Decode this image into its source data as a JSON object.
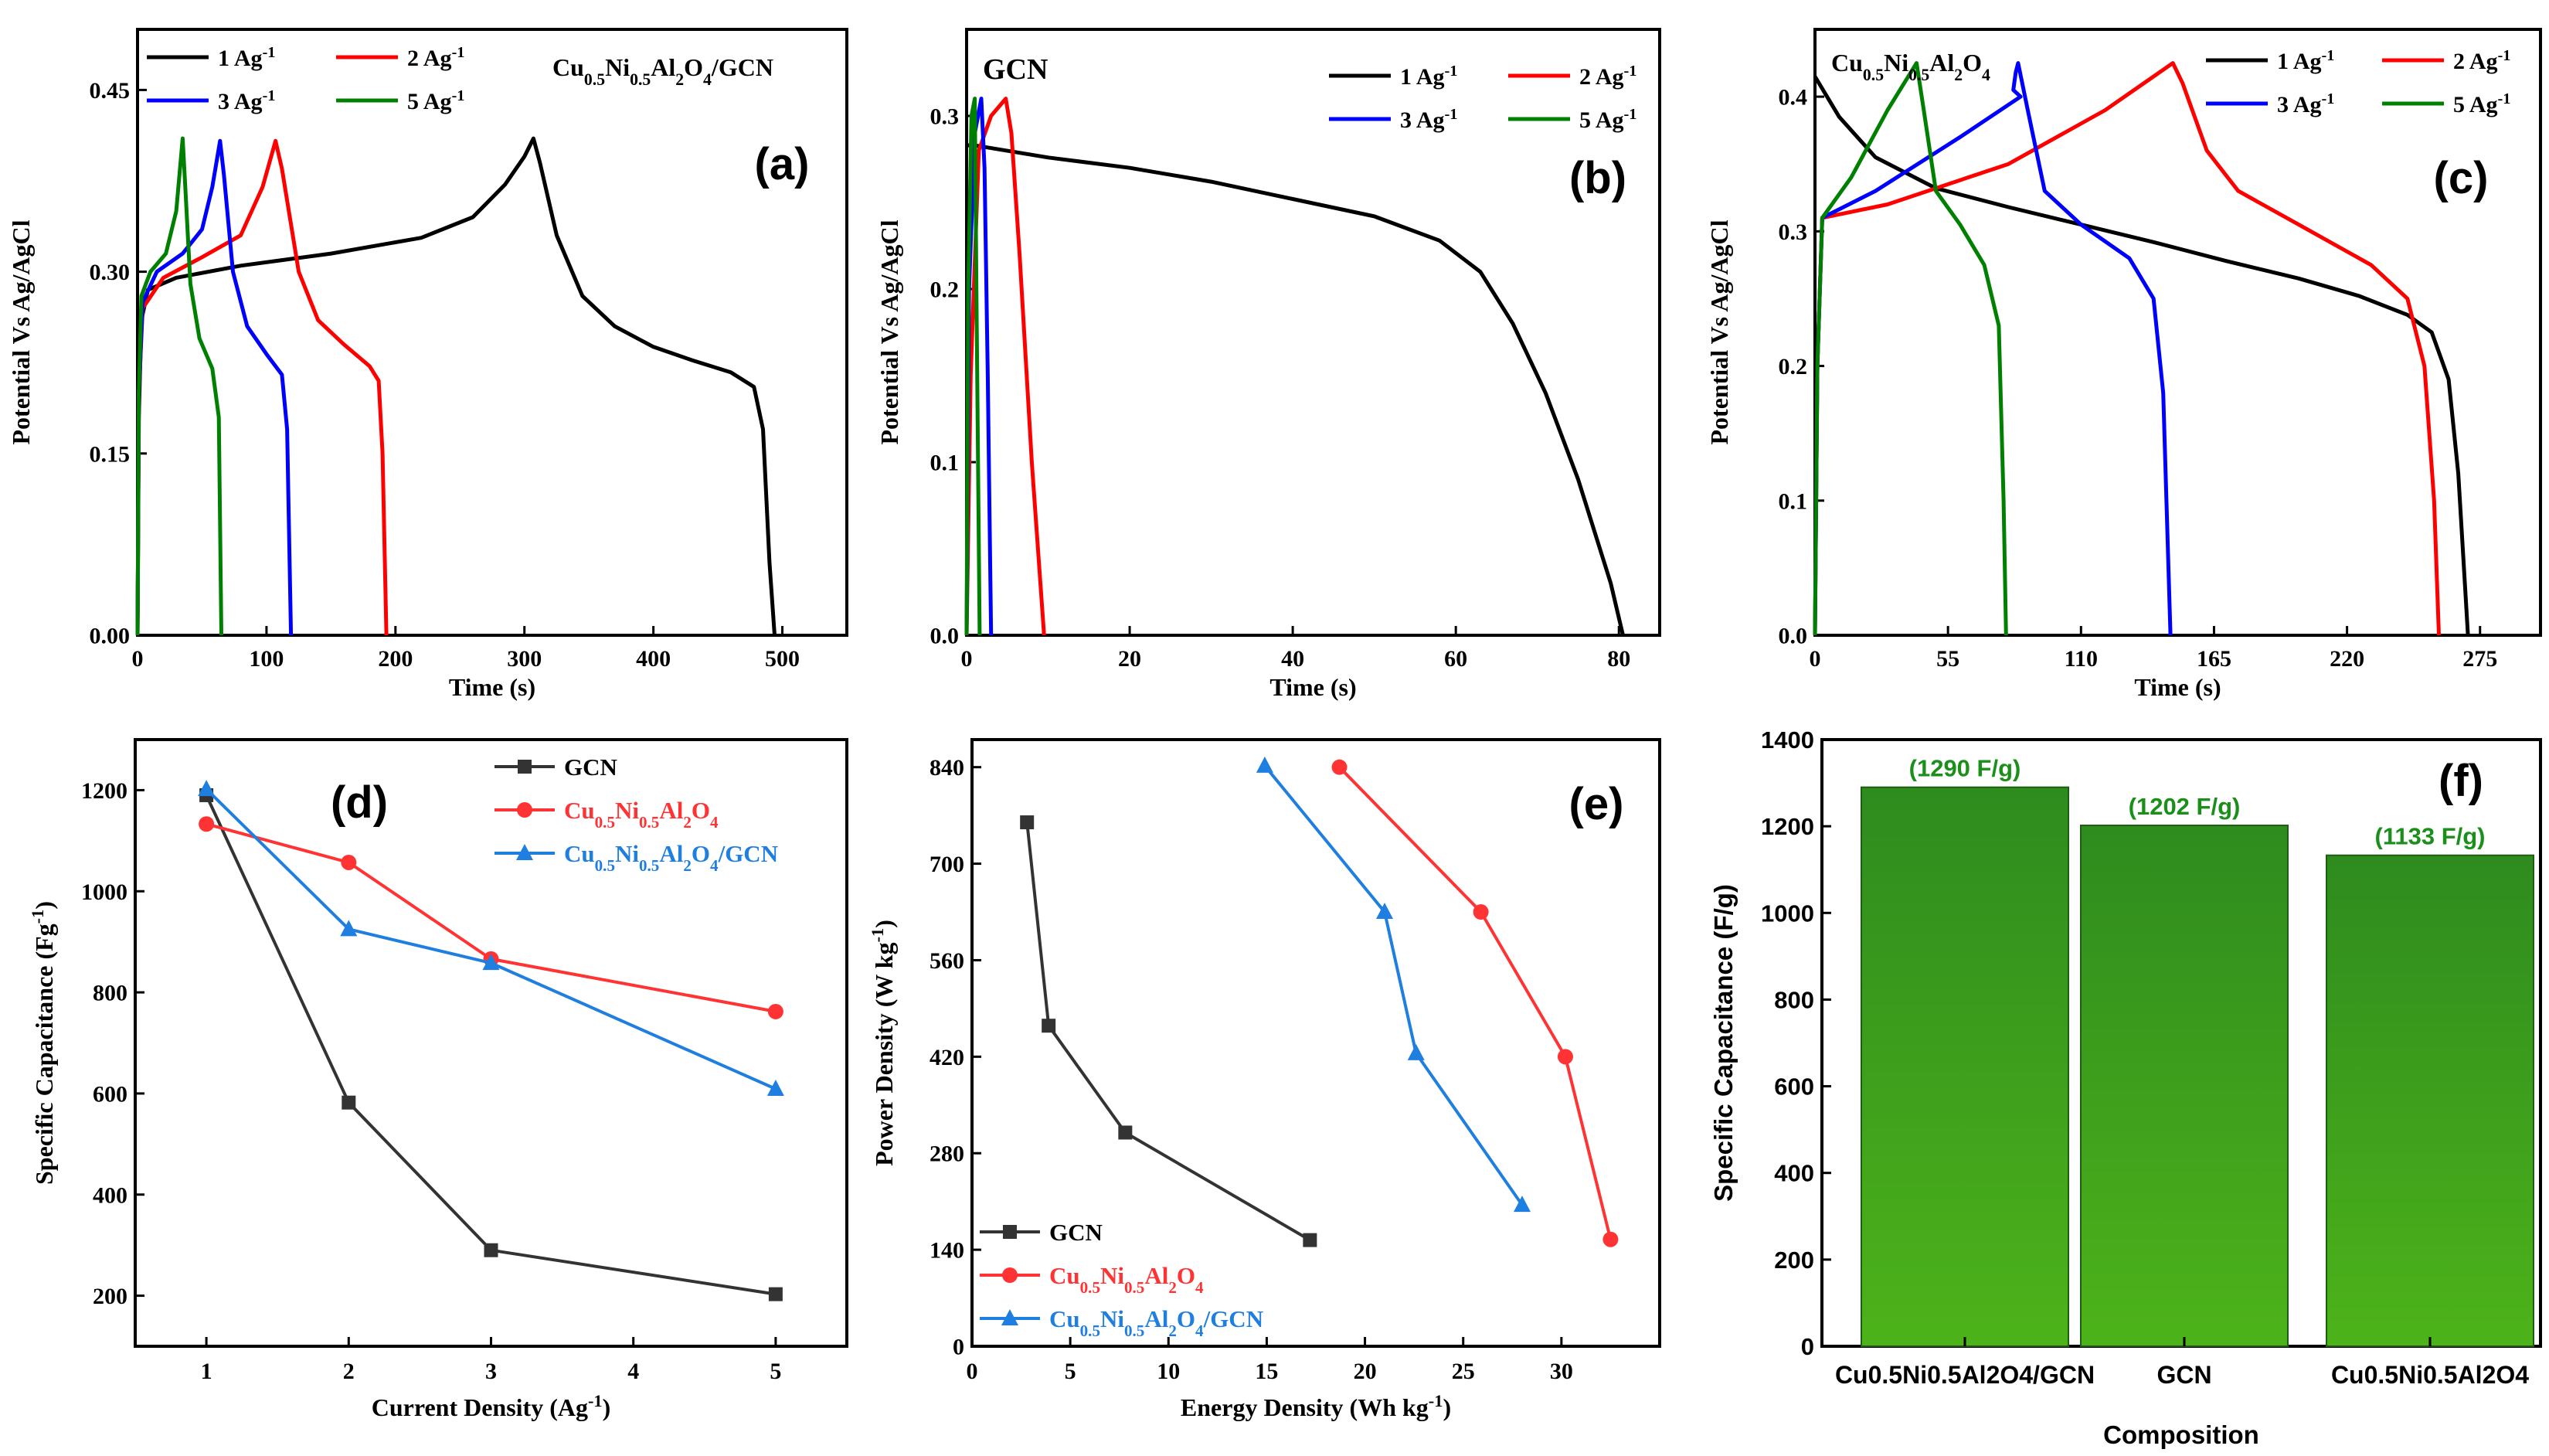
{
  "figure": {
    "description_panels": [
      "a",
      "b",
      "c",
      "d",
      "e",
      "f"
    ]
  },
  "chart_data": [
    {
      "id": "a",
      "type": "line",
      "panel_label": "(a)",
      "title": "Cu0.5Ni0.5Al2O4/GCN",
      "title_parts": [
        [
          "Cu",
          "0.5",
          "Ni",
          "0.5",
          "Al",
          "2",
          "O",
          "4",
          "/GCN"
        ]
      ],
      "xlabel": "Time (s)",
      "ylabel": "Potential Vs Ag/AgCl",
      "xlim": [
        0,
        550
      ],
      "ylim": [
        0,
        0.5
      ],
      "xticks": [
        0,
        100,
        200,
        300,
        400,
        500
      ],
      "yticks": [
        0.0,
        0.15,
        0.3,
        0.45
      ],
      "ytick_labels": [
        "0.00",
        "0.15",
        "0.30",
        "0.45"
      ],
      "legend": [
        "1 Ag-1",
        "2 Ag-1",
        "3 Ag-1",
        "5 Ag-1"
      ],
      "series": [
        {
          "name": "1 Ag-1",
          "color": "#000000",
          "points": [
            [
              0,
              0
            ],
            [
              1,
              0.18
            ],
            [
              3,
              0.26
            ],
            [
              8,
              0.285
            ],
            [
              30,
              0.295
            ],
            [
              80,
              0.305
            ],
            [
              150,
              0.315
            ],
            [
              220,
              0.328
            ],
            [
              260,
              0.345
            ],
            [
              285,
              0.372
            ],
            [
              300,
              0.395
            ],
            [
              307,
              0.41
            ],
            [
              312,
              0.39
            ],
            [
              325,
              0.33
            ],
            [
              345,
              0.28
            ],
            [
              370,
              0.255
            ],
            [
              400,
              0.238
            ],
            [
              430,
              0.227
            ],
            [
              460,
              0.217
            ],
            [
              478,
              0.205
            ],
            [
              485,
              0.17
            ],
            [
              490,
              0.06
            ],
            [
              494,
              0
            ]
          ]
        },
        {
          "name": "2 Ag-1",
          "color": "#ff0000",
          "points": [
            [
              0,
              0
            ],
            [
              1,
              0.2
            ],
            [
              4,
              0.27
            ],
            [
              20,
              0.295
            ],
            [
              50,
              0.312
            ],
            [
              80,
              0.33
            ],
            [
              97,
              0.37
            ],
            [
              107,
              0.408
            ],
            [
              112,
              0.385
            ],
            [
              125,
              0.3
            ],
            [
              140,
              0.26
            ],
            [
              160,
              0.24
            ],
            [
              180,
              0.222
            ],
            [
              187,
              0.21
            ],
            [
              190,
              0.15
            ],
            [
              193,
              0
            ]
          ]
        },
        {
          "name": "3 Ag-1",
          "color": "#0000ff",
          "points": [
            [
              0,
              0
            ],
            [
              1,
              0.2
            ],
            [
              4,
              0.275
            ],
            [
              15,
              0.3
            ],
            [
              35,
              0.315
            ],
            [
              50,
              0.335
            ],
            [
              58,
              0.37
            ],
            [
              64,
              0.408
            ],
            [
              67,
              0.38
            ],
            [
              74,
              0.3
            ],
            [
              85,
              0.255
            ],
            [
              100,
              0.232
            ],
            [
              112,
              0.215
            ],
            [
              116,
              0.17
            ],
            [
              119,
              0
            ]
          ]
        },
        {
          "name": "5 Ag-1",
          "color": "#008000",
          "points": [
            [
              0,
              0
            ],
            [
              1,
              0.2
            ],
            [
              3,
              0.28
            ],
            [
              10,
              0.3
            ],
            [
              22,
              0.315
            ],
            [
              30,
              0.35
            ],
            [
              35,
              0.41
            ],
            [
              37,
              0.37
            ],
            [
              41,
              0.29
            ],
            [
              48,
              0.245
            ],
            [
              58,
              0.22
            ],
            [
              63,
              0.18
            ],
            [
              65,
              0
            ]
          ]
        }
      ]
    },
    {
      "id": "b",
      "type": "line",
      "panel_label": "(b)",
      "title": "GCN",
      "xlabel": "Time (s)",
      "ylabel": "Potential Vs Ag/AgCl",
      "xlim": [
        0,
        85
      ],
      "ylim": [
        0,
        0.35
      ],
      "xticks": [
        0,
        20,
        40,
        60,
        80
      ],
      "yticks": [
        0.0,
        0.1,
        0.2,
        0.3
      ],
      "ytick_labels": [
        "0.0",
        "0.1",
        "0.2",
        "0.3"
      ],
      "legend": [
        "1 Ag-1",
        "2 Ag-1",
        "3 Ag-1",
        "5 Ag-1"
      ],
      "series": [
        {
          "name": "1 Ag-1",
          "color": "#000000",
          "points": [
            [
              0,
              0.283
            ],
            [
              1,
              0.283
            ],
            [
              10,
              0.276
            ],
            [
              20,
              0.27
            ],
            [
              30,
              0.262
            ],
            [
              40,
              0.252
            ],
            [
              50,
              0.242
            ],
            [
              58,
              0.228
            ],
            [
              63,
              0.21
            ],
            [
              67,
              0.18
            ],
            [
              71,
              0.14
            ],
            [
              75,
              0.09
            ],
            [
              79,
              0.03
            ],
            [
              80.5,
              0
            ]
          ]
        },
        {
          "name": "2 Ag-1",
          "color": "#ff0000",
          "points": [
            [
              0,
              0
            ],
            [
              0.5,
              0.15
            ],
            [
              1.5,
              0.28
            ],
            [
              3,
              0.3
            ],
            [
              4.8,
              0.31
            ],
            [
              5.5,
              0.29
            ],
            [
              6.5,
              0.22
            ],
            [
              8,
              0.1
            ],
            [
              9.5,
              0
            ]
          ]
        },
        {
          "name": "3 Ag-1",
          "color": "#0000ff",
          "points": [
            [
              0,
              0
            ],
            [
              0.3,
              0.2
            ],
            [
              1,
              0.29
            ],
            [
              1.8,
              0.31
            ],
            [
              2.2,
              0.27
            ],
            [
              2.6,
              0.15
            ],
            [
              3,
              0
            ]
          ]
        },
        {
          "name": "5 Ag-1",
          "color": "#008000",
          "points": [
            [
              0,
              0
            ],
            [
              0.2,
              0.2
            ],
            [
              0.6,
              0.3
            ],
            [
              1,
              0.31
            ],
            [
              1.2,
              0.2
            ],
            [
              1.4,
              0.1
            ],
            [
              1.6,
              0
            ]
          ]
        }
      ]
    },
    {
      "id": "c",
      "type": "line",
      "panel_label": "(c)",
      "title": "Cu0.5Ni0.5Al2O4",
      "title_parts": [
        [
          "Cu",
          "0.5",
          "Ni",
          "0.5",
          "Al",
          "2",
          "O",
          "4",
          ""
        ]
      ],
      "xlabel": "Time (s)",
      "ylabel": "Potential Vs Ag/AgCl",
      "xlim": [
        0,
        300
      ],
      "ylim": [
        0,
        0.45
      ],
      "xticks": [
        0,
        55,
        110,
        165,
        220,
        275
      ],
      "yticks": [
        0.0,
        0.1,
        0.2,
        0.3,
        0.4
      ],
      "ytick_labels": [
        "0.0",
        "0.1",
        "0.2",
        "0.3",
        "0.4"
      ],
      "legend": [
        "1 Ag-1",
        "2 Ag-1",
        "3 Ag-1",
        "5 Ag-1"
      ],
      "series": [
        {
          "name": "1 Ag-1",
          "color": "#000000",
          "points": [
            [
              0,
              0.415
            ],
            [
              10,
              0.385
            ],
            [
              25,
              0.355
            ],
            [
              50,
              0.332
            ],
            [
              80,
              0.318
            ],
            [
              110,
              0.305
            ],
            [
              140,
              0.292
            ],
            [
              170,
              0.278
            ],
            [
              200,
              0.265
            ],
            [
              225,
              0.252
            ],
            [
              245,
              0.238
            ],
            [
              255,
              0.225
            ],
            [
              262,
              0.19
            ],
            [
              266,
              0.12
            ],
            [
              269,
              0.03
            ],
            [
              270,
              0
            ]
          ]
        },
        {
          "name": "2 Ag-1",
          "color": "#ff0000",
          "points": [
            [
              0,
              0
            ],
            [
              1,
              0.2
            ],
            [
              3,
              0.31
            ],
            [
              30,
              0.32
            ],
            [
              80,
              0.35
            ],
            [
              120,
              0.39
            ],
            [
              148,
              0.425
            ],
            [
              152,
              0.41
            ],
            [
              162,
              0.36
            ],
            [
              175,
              0.33
            ],
            [
              200,
              0.305
            ],
            [
              230,
              0.275
            ],
            [
              245,
              0.25
            ],
            [
              252,
              0.2
            ],
            [
              256,
              0.1
            ],
            [
              258,
              0
            ]
          ]
        },
        {
          "name": "3 Ag-1",
          "color": "#0000ff",
          "points": [
            [
              0,
              0
            ],
            [
              1,
              0.2
            ],
            [
              3,
              0.31
            ],
            [
              25,
              0.33
            ],
            [
              60,
              0.37
            ],
            [
              85,
              0.4
            ],
            [
              82,
              0.405
            ],
            [
              83,
              0.418
            ],
            [
              84,
              0.425
            ],
            [
              88,
              0.39
            ],
            [
              95,
              0.33
            ],
            [
              110,
              0.305
            ],
            [
              130,
              0.28
            ],
            [
              140,
              0.25
            ],
            [
              144,
              0.18
            ],
            [
              147,
              0
            ]
          ]
        },
        {
          "name": "5 Ag-1",
          "color": "#008000",
          "points": [
            [
              0,
              0
            ],
            [
              1,
              0.2
            ],
            [
              3,
              0.31
            ],
            [
              15,
              0.34
            ],
            [
              30,
              0.39
            ],
            [
              42,
              0.425
            ],
            [
              45,
              0.39
            ],
            [
              50,
              0.33
            ],
            [
              60,
              0.305
            ],
            [
              70,
              0.275
            ],
            [
              76,
              0.23
            ],
            [
              78,
              0.1
            ],
            [
              79,
              0
            ]
          ]
        }
      ]
    },
    {
      "id": "d",
      "type": "line",
      "panel_label": "(d)",
      "xlabel": "Current Density (Ag-1)",
      "ylabel": "Specific Capacitance (Fg-1)",
      "xlim": [
        0.5,
        5.5
      ],
      "ylim": [
        100,
        1300
      ],
      "xticks": [
        1,
        2,
        3,
        4,
        5
      ],
      "yticks": [
        200,
        400,
        600,
        800,
        1000,
        1200
      ],
      "x": [
        1,
        2,
        3,
        5
      ],
      "legend": [
        "GCN",
        "Cu0.5Ni0.5Al2O4",
        "Cu0.5Ni0.5Al2O4/GCN"
      ],
      "series": [
        {
          "name": "GCN",
          "color": "#333333",
          "marker": "square",
          "values": [
            1190,
            582,
            290,
            203
          ]
        },
        {
          "name": "Cu0.5Ni0.5Al2O4",
          "color": "#ff3333",
          "marker": "circle",
          "values": [
            1133,
            1057,
            866,
            762
          ]
        },
        {
          "name": "Cu0.5Ni0.5Al2O4/GCN",
          "color": "#1f7fe0",
          "marker": "triangle",
          "values": [
            1202,
            925,
            858,
            609
          ]
        }
      ]
    },
    {
      "id": "e",
      "type": "line",
      "panel_label": "(e)",
      "xlabel": "Energy Density (Wh kg-1)",
      "ylabel": "Power Density (W kg-1)",
      "xlim": [
        0,
        35
      ],
      "ylim": [
        0,
        880
      ],
      "xticks": [
        0,
        5,
        10,
        15,
        20,
        25,
        30
      ],
      "yticks": [
        0,
        140,
        280,
        420,
        560,
        700,
        840
      ],
      "legend": [
        "GCN",
        "Cu0.5Ni0.5Al2O4",
        "Cu0.5Ni0.5Al2O4/GCN"
      ],
      "series": [
        {
          "name": "GCN",
          "color": "#333333",
          "marker": "square",
          "points": [
            [
              2.8,
              760
            ],
            [
              3.9,
              465
            ],
            [
              7.8,
              310
            ],
            [
              17.2,
              154
            ]
          ]
        },
        {
          "name": "Cu0.5Ni0.5Al2O4",
          "color": "#ff3333",
          "marker": "circle",
          "points": [
            [
              18.7,
              840
            ],
            [
              25.9,
              630
            ],
            [
              30.2,
              420
            ],
            [
              32.5,
              155
            ]
          ]
        },
        {
          "name": "Cu0.5Ni0.5Al2O4/GCN",
          "color": "#1f7fe0",
          "marker": "triangle",
          "points": [
            [
              14.9,
              842
            ],
            [
              21.0,
              630
            ],
            [
              22.6,
              425
            ],
            [
              28.0,
              205
            ]
          ]
        }
      ]
    },
    {
      "id": "f",
      "type": "bar",
      "panel_label": "(f)",
      "xlabel": "Composition",
      "ylabel": "Specific Capacitance (F/g)",
      "ylim": [
        0,
        1400
      ],
      "yticks": [
        0,
        200,
        400,
        600,
        800,
        1000,
        1200,
        1400
      ],
      "categories": [
        "Cu0.5Ni0.5Al2O4/GCN",
        "GCN",
        "Cu0.5Ni0.5Al2O4"
      ],
      "values": [
        1290,
        1202,
        1133
      ],
      "data_labels": [
        "(1290 F/g)",
        "(1202 F/g)",
        "(1133 F/g)"
      ],
      "bar_color": "#4db31a",
      "label_color": "#1a8f1a"
    }
  ]
}
